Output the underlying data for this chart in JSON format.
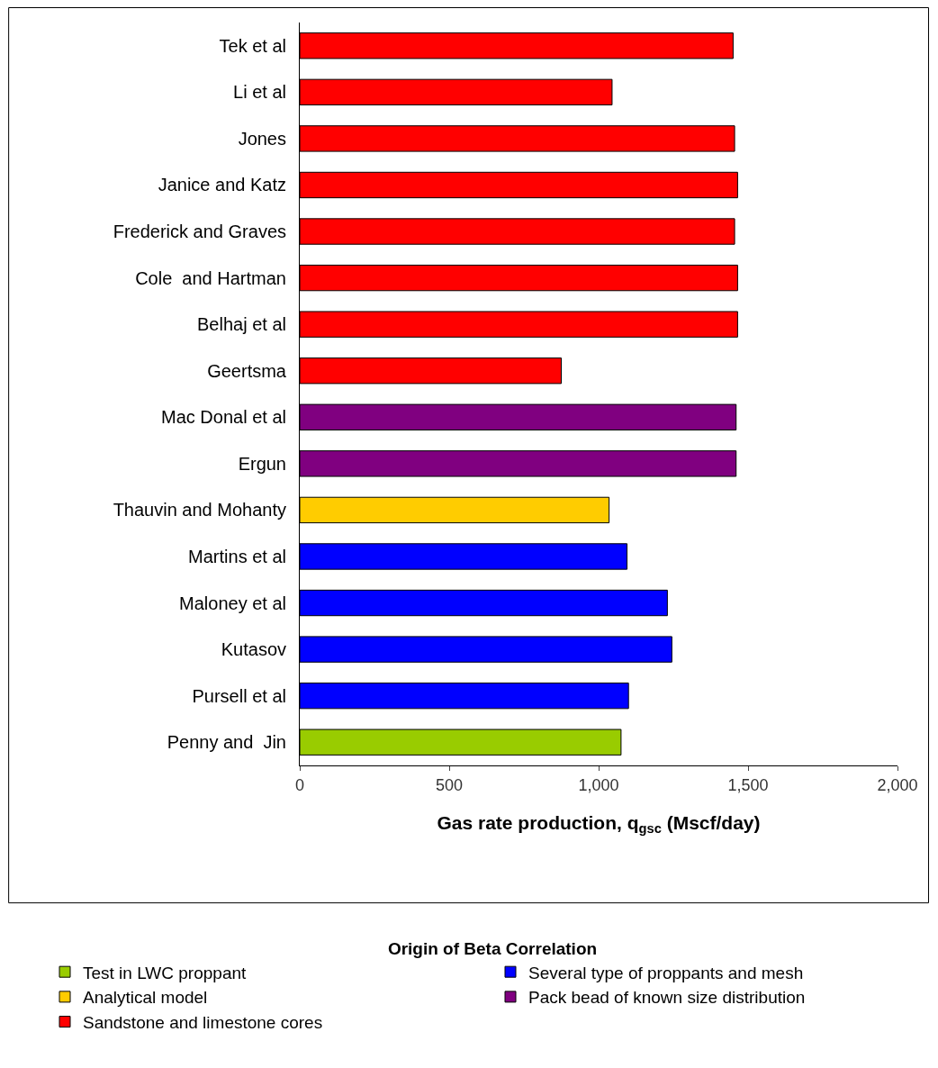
{
  "chart_data": {
    "type": "bar",
    "orientation": "horizontal",
    "categories": [
      "Tek et al",
      "Li et al",
      "Jones",
      "Janice and Katz",
      "Frederick and Graves",
      "Cole  and Hartman",
      "Belhaj et al",
      "Geertsma",
      "Mac Donal et al",
      "Ergun",
      "Thauvin and Mohanty",
      "Martins et al",
      "Maloney et al",
      "Kutasov",
      "Pursell et al",
      "Penny and  Jin"
    ],
    "series": [
      {
        "name": "Test in LWC proppant",
        "color": "#99cc00",
        "values": [
          null,
          null,
          null,
          null,
          null,
          null,
          null,
          null,
          null,
          null,
          null,
          null,
          null,
          null,
          null,
          1075
        ]
      },
      {
        "name": "Several type of proppants and mesh",
        "color": "#0000ff",
        "values": [
          null,
          null,
          null,
          null,
          null,
          null,
          null,
          null,
          null,
          null,
          null,
          1095,
          1230,
          1245,
          1100,
          null
        ]
      },
      {
        "name": "Analytical model",
        "color": "#ffcc00",
        "values": [
          null,
          null,
          null,
          null,
          null,
          null,
          null,
          null,
          null,
          null,
          1035,
          null,
          null,
          null,
          null,
          null
        ]
      },
      {
        "name": "Pack bead of known size distribution",
        "color": "#800080",
        "values": [
          null,
          null,
          null,
          null,
          null,
          null,
          null,
          null,
          1460,
          1460,
          null,
          null,
          null,
          null,
          null,
          null
        ]
      },
      {
        "name": "Sandstone and limestone cores",
        "color": "#ff0000",
        "values": [
          1450,
          1045,
          1455,
          1465,
          1455,
          1465,
          1465,
          875,
          null,
          null,
          null,
          null,
          null,
          null,
          null,
          null
        ]
      }
    ],
    "xlabel": "Gas rate production, q$_{gsc}$ (Mscf/day)",
    "legend_title": "Origin of Beta Correlation",
    "xlim": [
      0,
      2000
    ],
    "xticks": [
      0,
      {
        "value": 500,
        "label": "500"
      },
      {
        "value": 1000,
        "label": "1,000"
      },
      {
        "value": 1500,
        "label": "1,500"
      },
      {
        "value": 2000,
        "label": "2,000"
      }
    ],
    "grid": false,
    "legend": "bottom"
  }
}
